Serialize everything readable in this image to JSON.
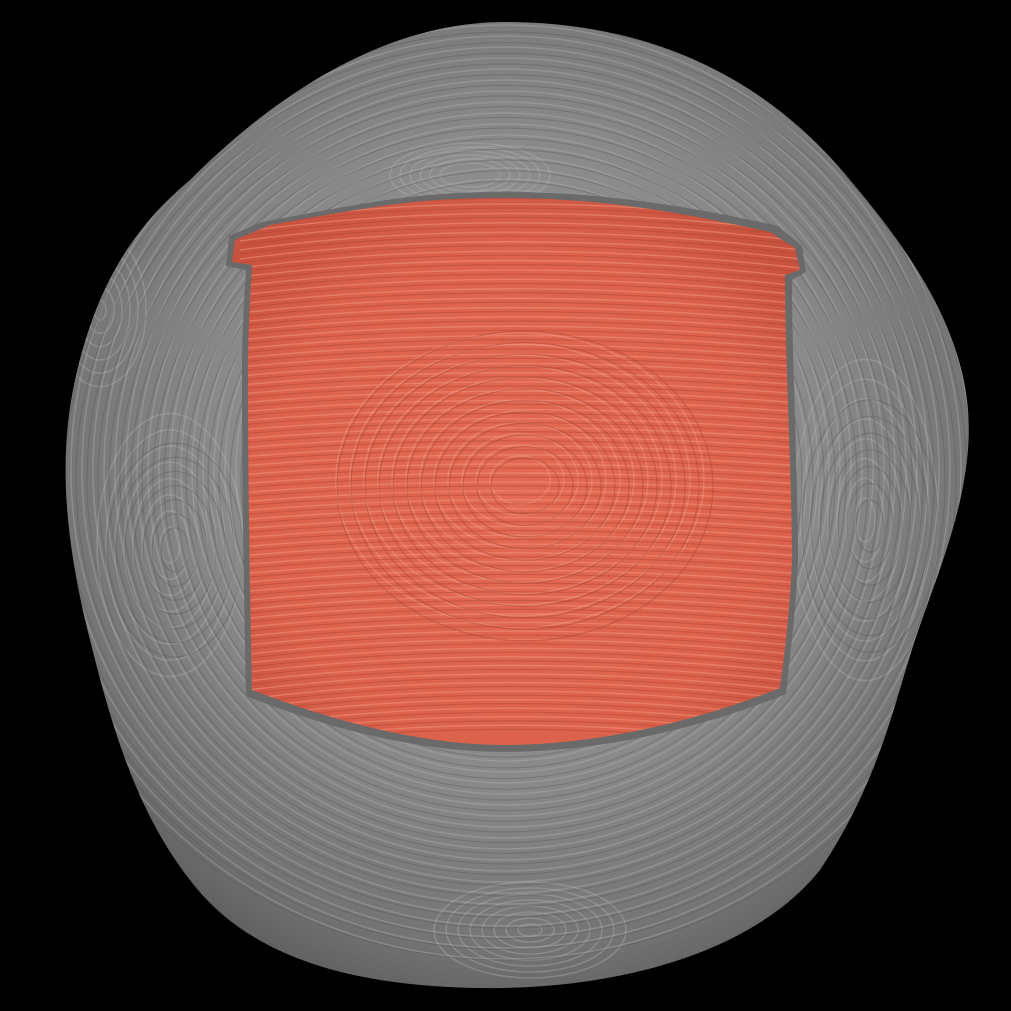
{
  "scene": {
    "background_color": "#000000",
    "structure_color": "#8a8a8a",
    "structure_shadow_color": "#5e5e5e",
    "structure_highlight_color": "#a6a6a6",
    "region_color": "#e06650",
    "region_shadow_color": "#b84a38",
    "region_highlight_color": "#f08a74",
    "icon": "3d-surface-render"
  }
}
